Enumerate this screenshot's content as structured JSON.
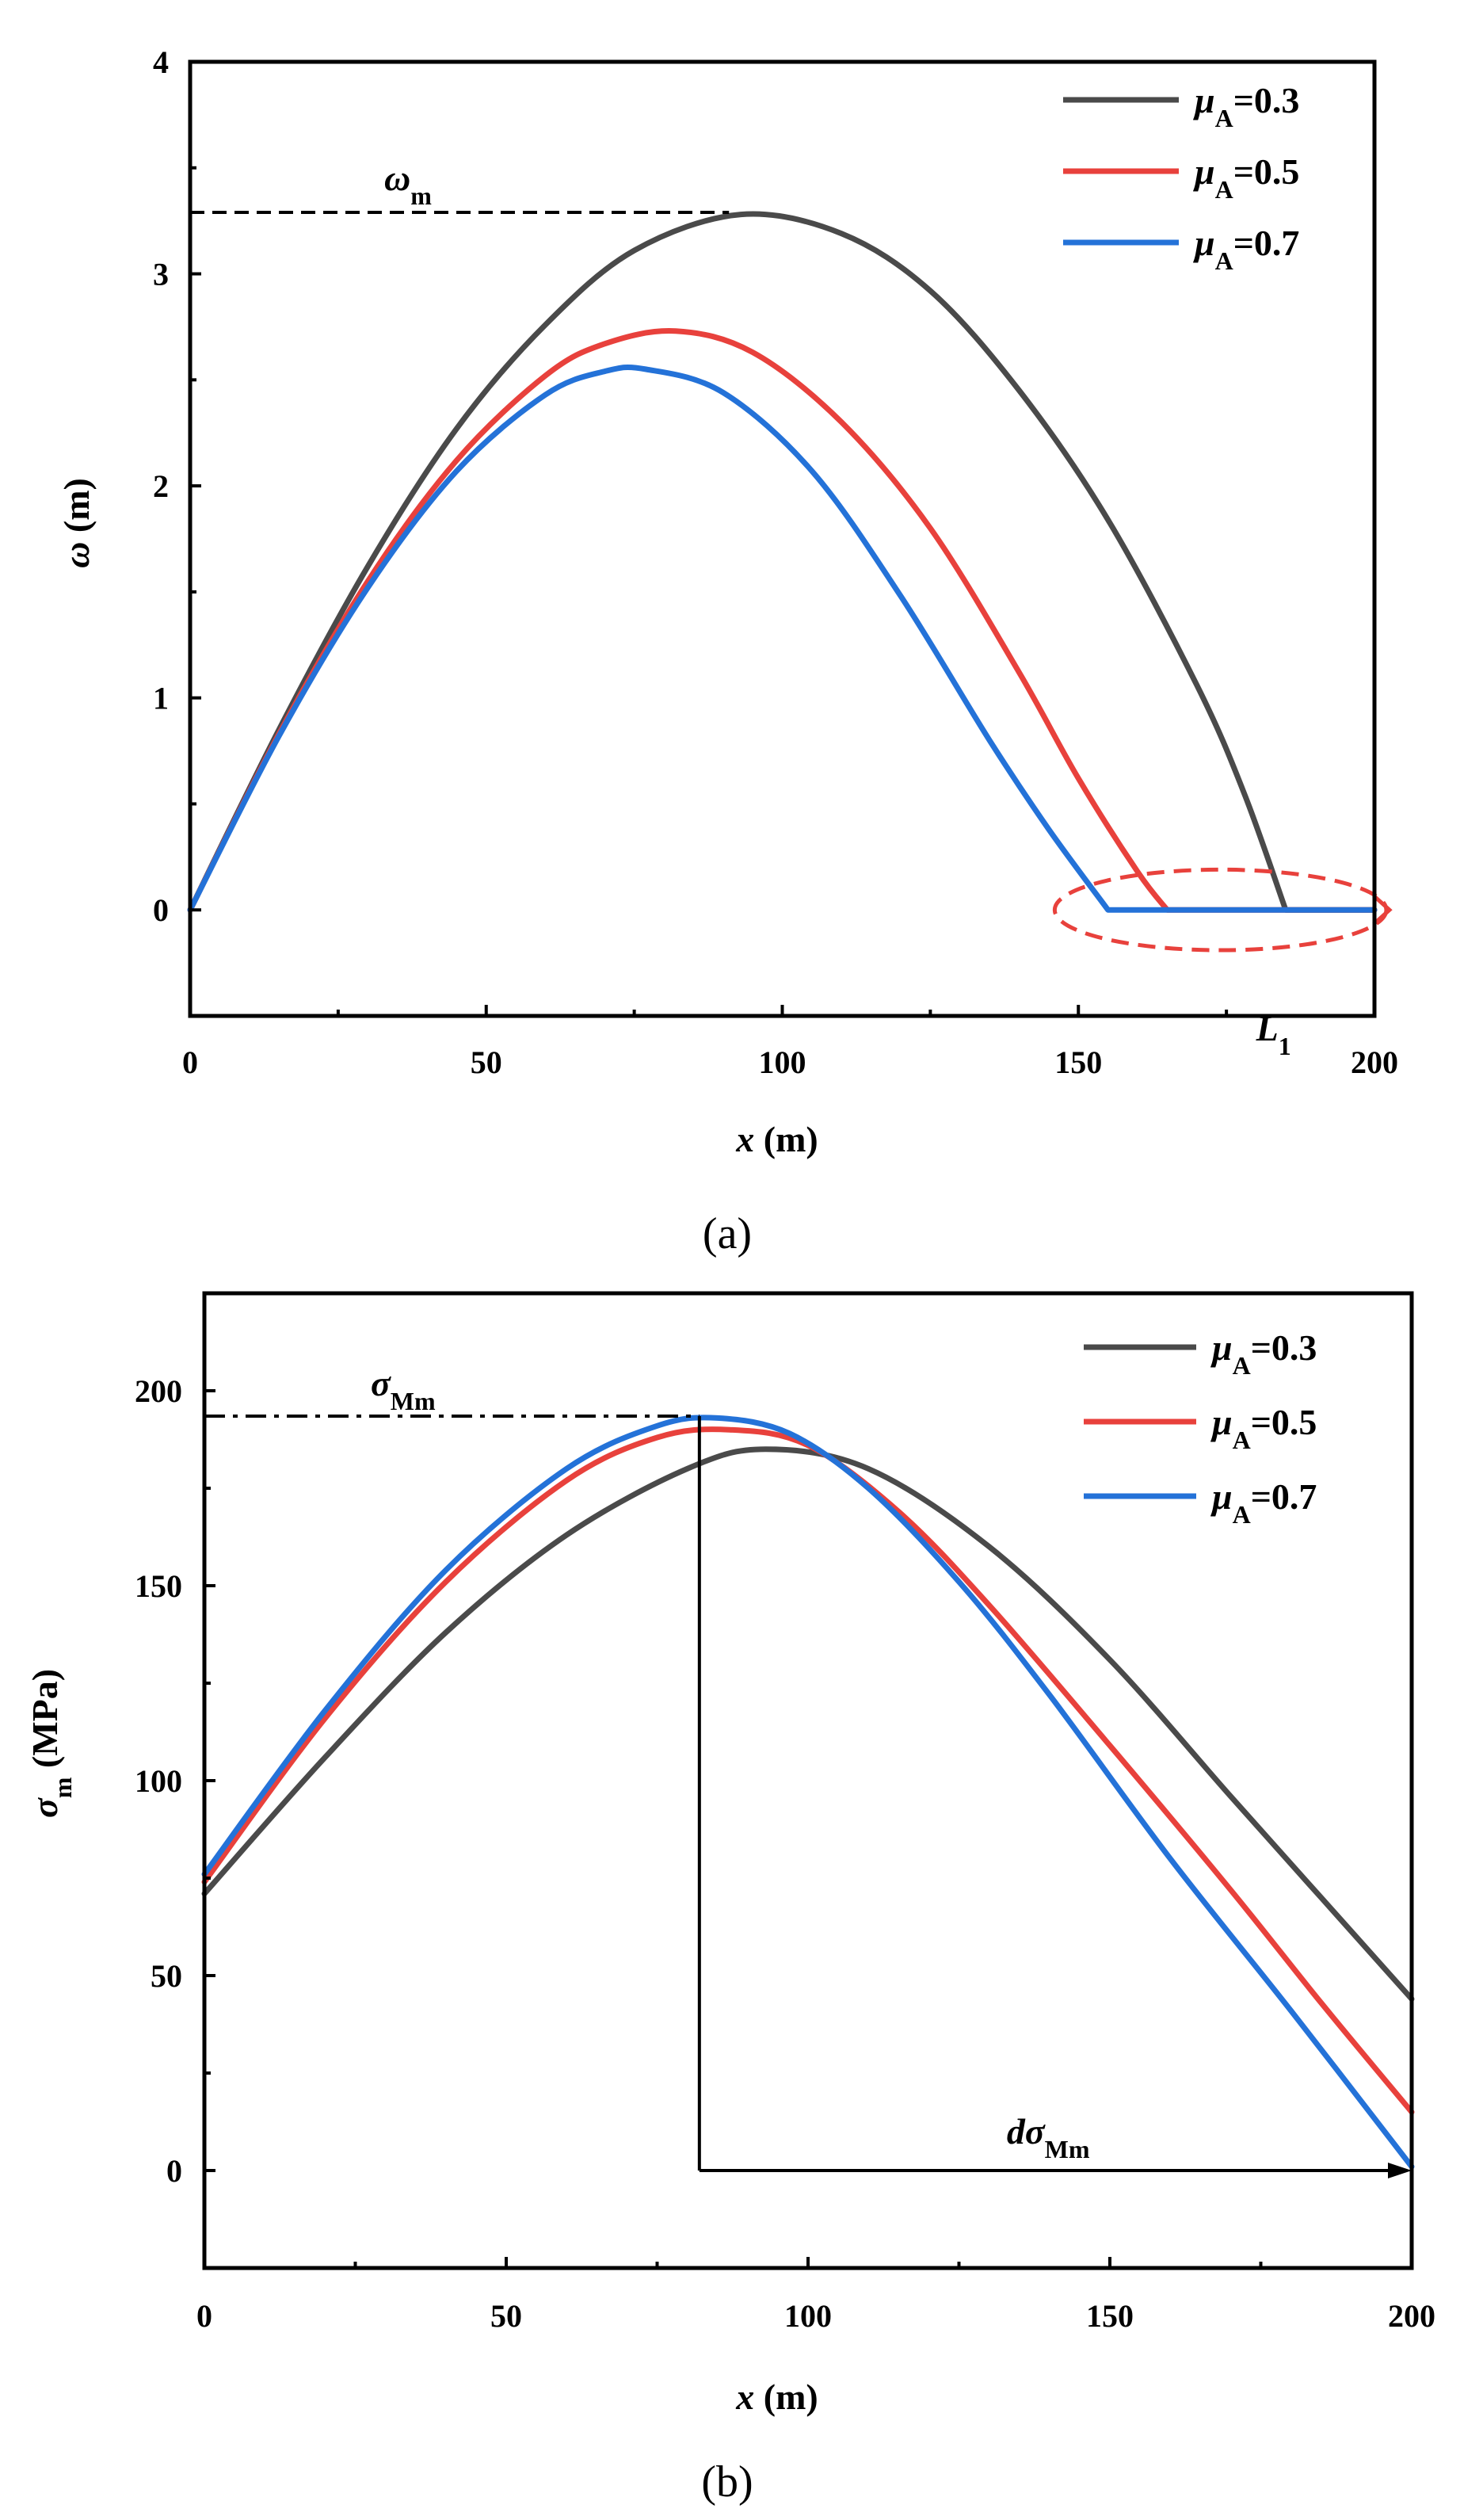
{
  "chart_data": [
    {
      "type": "line",
      "panel": "(a)",
      "xlabel": {
        "var": "x",
        "unit": " (m)"
      },
      "ylabel": {
        "var": "ω",
        "unit": " (m)"
      },
      "xlim": [
        0,
        200
      ],
      "ylim": [
        -0.5,
        4
      ],
      "xticks": [
        "0",
        "50",
        "100",
        "150",
        "200"
      ],
      "yticks": [
        "0",
        "1",
        "2",
        "3",
        "4"
      ],
      "legend_position": "top-right",
      "series": [
        {
          "name_var": "μ",
          "name_sub": "A",
          "name_val": "=0.3",
          "color": "#4a4a4a",
          "x": [
            0,
            15,
            30,
            45,
            60,
            75,
            93,
            110,
            125,
            140,
            155,
            170,
            178,
            185,
            190,
            200
          ],
          "y": [
            0,
            0.85,
            1.62,
            2.27,
            2.76,
            3.11,
            3.28,
            3.19,
            2.92,
            2.45,
            1.84,
            1.06,
            0.55,
            0,
            0,
            0
          ]
        },
        {
          "name_var": "μ",
          "name_sub": "A",
          "name_val": "=0.5",
          "color": "#e8413c",
          "x": [
            0,
            15,
            30,
            45,
            60,
            70,
            82,
            95,
            110,
            125,
            140,
            150,
            160,
            165,
            170,
            200
          ],
          "y": [
            0,
            0.83,
            1.55,
            2.12,
            2.52,
            2.67,
            2.73,
            2.63,
            2.3,
            1.8,
            1.12,
            0.62,
            0.18,
            0,
            0,
            0
          ]
        },
        {
          "name_var": "μ",
          "name_sub": "A",
          "name_val": "=0.7",
          "color": "#2472d8",
          "x": [
            0,
            15,
            30,
            45,
            60,
            70,
            77,
            90,
            105,
            120,
            135,
            145,
            155,
            160,
            200
          ],
          "y": [
            0,
            0.82,
            1.52,
            2.07,
            2.43,
            2.54,
            2.55,
            2.44,
            2.07,
            1.48,
            0.8,
            0.38,
            0,
            0,
            0
          ]
        }
      ],
      "annotations": [
        {
          "kind": "hline-dashed",
          "y": 3.29,
          "x0": 0,
          "x1": 91,
          "label_var": "ω",
          "label_sub": "m"
        },
        {
          "kind": "ellipse-dashed-arrow",
          "cx": 174,
          "cy": 0,
          "rx": 28,
          "ry": 0.19,
          "color": "#e8413c",
          "label_var": "L",
          "label_sub": "1"
        }
      ]
    },
    {
      "type": "line",
      "panel": "(b)",
      "xlabel": {
        "var": "x",
        "unit": " (m)"
      },
      "ylabel": {
        "var": "σ",
        "sub": "m",
        "unit": " (MPa)"
      },
      "xlim": [
        0,
        200
      ],
      "ylim": [
        -25,
        225
      ],
      "xticks": [
        "0",
        "50",
        "100",
        "150",
        "200"
      ],
      "yticks": [
        "0",
        "50",
        "100",
        "150",
        "200"
      ],
      "legend_position": "top-right",
      "series": [
        {
          "name_var": "μ",
          "name_sub": "A",
          "name_val": "=0.3",
          "color": "#4a4a4a",
          "x": [
            0,
            20,
            40,
            60,
            80,
            93,
            110,
            130,
            150,
            170,
            185,
            200
          ],
          "y": [
            71,
            106,
            138,
            163,
            180,
            185,
            180,
            160,
            131,
            96,
            70,
            44
          ]
        },
        {
          "name_var": "μ",
          "name_sub": "A",
          "name_val": "=0.5",
          "color": "#e8413c",
          "x": [
            0,
            20,
            40,
            60,
            75,
            87,
            100,
            115,
            130,
            150,
            170,
            185,
            200
          ],
          "y": [
            74,
            116,
            151,
            177,
            188,
            190,
            186,
            169,
            145,
            109,
            72,
            43,
            15
          ]
        },
        {
          "name_var": "μ",
          "name_sub": "A",
          "name_val": "=0.7",
          "color": "#2472d8",
          "x": [
            0,
            20,
            40,
            60,
            75,
            85,
            97,
            110,
            125,
            140,
            160,
            180,
            200
          ],
          "y": [
            76,
            118,
            154,
            180,
            191,
            193,
            189,
            175,
            151,
            122,
            80,
            41,
            1
          ]
        }
      ],
      "annotations": [
        {
          "kind": "hline-dashdot",
          "y": 193.5,
          "x0": 0,
          "x1": 82,
          "label_var": "σ",
          "label_sub": "Mm"
        },
        {
          "kind": "vline",
          "x": 82,
          "y0": 193.5,
          "y1": 0
        },
        {
          "kind": "arrow",
          "x0": 82,
          "x1": 200,
          "y": 0,
          "label_var": "dσ",
          "label_sub": "Mm"
        }
      ]
    }
  ]
}
